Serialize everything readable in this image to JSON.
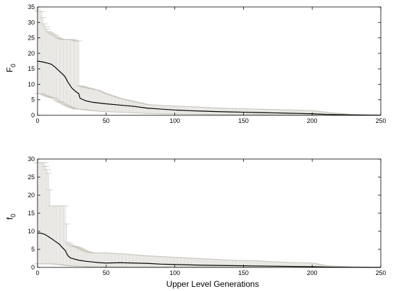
{
  "chart_data": [
    {
      "type": "line",
      "ylabel_main": "F",
      "ylabel_sub": "0",
      "xlim": [
        0,
        250
      ],
      "ylim": [
        0,
        35
      ],
      "xticks": [
        0,
        50,
        100,
        150,
        200,
        250
      ],
      "yticks": [
        0,
        5,
        10,
        15,
        20,
        25,
        30,
        35
      ],
      "mean": {
        "x": [
          0,
          3,
          6,
          10,
          13,
          16,
          18,
          20,
          22,
          25,
          28,
          30,
          31,
          35,
          40,
          50,
          60,
          70,
          80,
          90,
          100,
          110,
          120,
          130,
          140,
          150,
          160,
          170,
          180,
          190,
          200,
          210,
          220,
          230,
          240,
          250
        ],
        "y": [
          17.5,
          17.3,
          17,
          16.5,
          15.5,
          14.2,
          13.4,
          12.5,
          10.8,
          8.8,
          7.6,
          7,
          5.5,
          4.7,
          4.2,
          3.7,
          3.3,
          2.9,
          2.3,
          2.0,
          1.7,
          1.5,
          1.35,
          1.2,
          1.1,
          1.0,
          0.9,
          0.8,
          0.7,
          0.6,
          0.5,
          0.3,
          0.2,
          0.1,
          0.05,
          0.02
        ]
      },
      "range": {
        "x": [
          0,
          1,
          2,
          3,
          5,
          8,
          12,
          15,
          18,
          20,
          22,
          25,
          28,
          30,
          31,
          35,
          40,
          45,
          50,
          60,
          70,
          80,
          90,
          100,
          120,
          140,
          160,
          180,
          200,
          210,
          220,
          230,
          240,
          250
        ],
        "lower": [
          7,
          7,
          7,
          7,
          6.5,
          6,
          5.5,
          4.5,
          4,
          3.5,
          3,
          2.5,
          2,
          2,
          2,
          1.8,
          1.5,
          1.3,
          1.2,
          1.0,
          0.8,
          0.6,
          0.5,
          0.4,
          0.3,
          0.2,
          0.2,
          0.1,
          0.05,
          0.02,
          0.01,
          0,
          0,
          0
        ],
        "upper": [
          34,
          33.5,
          33.5,
          33.5,
          29.5,
          27,
          26,
          25,
          24.5,
          24.5,
          24.5,
          24.5,
          24,
          24,
          9.5,
          9,
          8.5,
          8,
          7,
          5.5,
          4.5,
          3.5,
          3.2,
          3.0,
          2.6,
          2.2,
          2.0,
          1.8,
          1.5,
          1.0,
          0.6,
          0.3,
          0.15,
          0.1
        ]
      }
    },
    {
      "type": "line",
      "ylabel_main": "f",
      "ylabel_sub": "0",
      "xlabel": "Upper Level Generations",
      "xlim": [
        0,
        250
      ],
      "ylim": [
        0,
        30
      ],
      "xticks": [
        0,
        50,
        100,
        150,
        200,
        250
      ],
      "yticks": [
        0,
        5,
        10,
        15,
        20,
        25,
        30
      ],
      "mean": {
        "x": [
          0,
          2,
          5,
          8,
          10,
          13,
          16,
          18,
          20,
          22,
          24,
          26,
          30,
          35,
          40,
          45,
          50,
          60,
          70,
          80,
          90,
          100,
          120,
          140,
          160,
          180,
          200,
          210,
          220,
          230,
          250
        ],
        "y": [
          9.5,
          9.5,
          9.2,
          8.5,
          8,
          7.2,
          6.4,
          5.5,
          4.8,
          3.3,
          2.6,
          2.4,
          2.0,
          1.7,
          1.5,
          1.3,
          1.2,
          1.3,
          1.2,
          1.1,
          0.9,
          0.8,
          0.6,
          0.5,
          0.4,
          0.3,
          0.2,
          0.1,
          0.05,
          0.02,
          0
        ]
      },
      "range": {
        "x": [
          0,
          2,
          5,
          8,
          10,
          15,
          20,
          22,
          25,
          30,
          35,
          40,
          50,
          60,
          70,
          80,
          100,
          120,
          140,
          160,
          180,
          200,
          210,
          220,
          230,
          250
        ],
        "lower": [
          1,
          1,
          1,
          1,
          1,
          0.8,
          0.6,
          0.5,
          0.4,
          0.3,
          0.25,
          0.2,
          0.2,
          0.15,
          0.1,
          0.1,
          0.1,
          0.05,
          0.05,
          0.02,
          0.02,
          0,
          0,
          0,
          0,
          0
        ],
        "upper": [
          29,
          29,
          29,
          26,
          17,
          17,
          17,
          7,
          6,
          5.5,
          4.5,
          4,
          4,
          3.8,
          3.5,
          3.2,
          2.8,
          2.4,
          2.0,
          1.8,
          1.4,
          1.2,
          0.5,
          0.3,
          0.1,
          0.05
        ]
      }
    }
  ]
}
